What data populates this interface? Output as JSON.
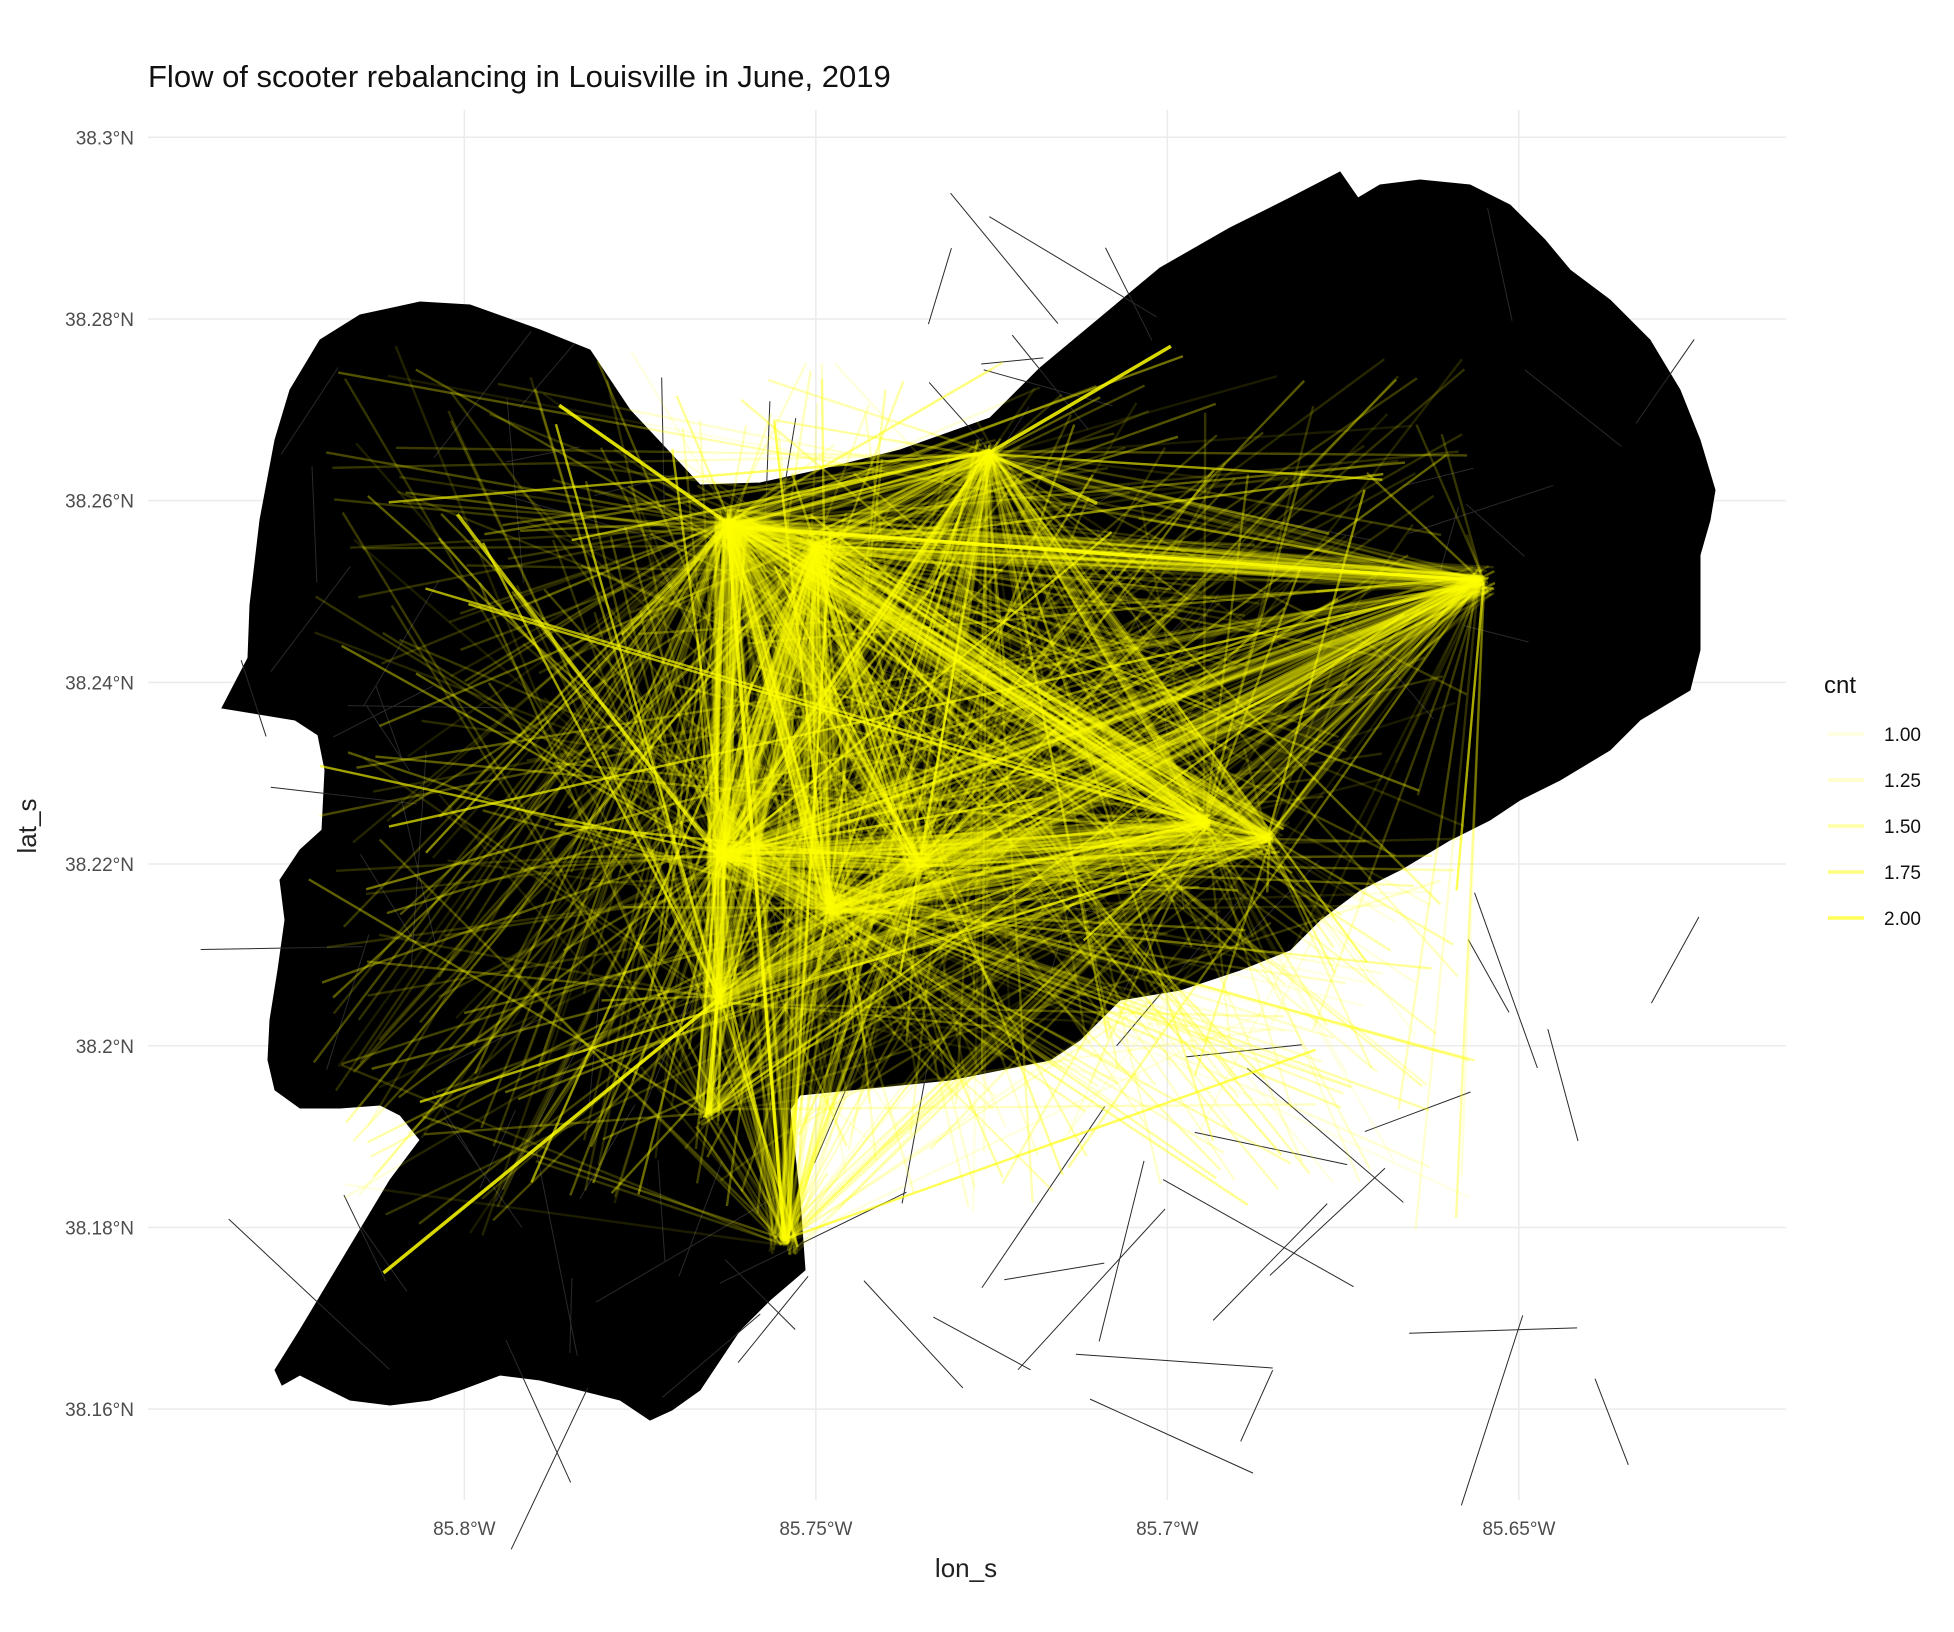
{
  "chart_data": {
    "type": "map",
    "title": "Flow of scooter rebalancing in Louisville in June, 2019",
    "xlabel": "lon_s",
    "ylabel": "lat_s",
    "xlim": [
      -85.845,
      -85.612
    ],
    "ylim": [
      38.15,
      38.303
    ],
    "x_ticks": [
      {
        "value": -85.8,
        "label": "85.8°W"
      },
      {
        "value": -85.75,
        "label": "85.75°W"
      },
      {
        "value": -85.7,
        "label": "85.7°W"
      },
      {
        "value": -85.65,
        "label": "85.65°W"
      }
    ],
    "y_ticks": [
      {
        "value": 38.3,
        "label": "38.3°N"
      },
      {
        "value": 38.28,
        "label": "38.28°N"
      },
      {
        "value": 38.26,
        "label": "38.26°N"
      },
      {
        "value": 38.24,
        "label": "38.24°N"
      },
      {
        "value": 38.22,
        "label": "38.22°N"
      },
      {
        "value": 38.2,
        "label": "38.2°N"
      },
      {
        "value": 38.18,
        "label": "38.18°N"
      },
      {
        "value": 38.16,
        "label": "38.16°N"
      }
    ],
    "grid": true,
    "base_map_color": "#000000",
    "flow_color": "#FFFF00",
    "legend": {
      "title": "cnt",
      "position": "right",
      "entries": [
        {
          "label": "1.00",
          "value": 1.0,
          "opacity": 0.12
        },
        {
          "label": "1.25",
          "value": 1.25,
          "opacity": 0.22
        },
        {
          "label": "1.50",
          "value": 1.5,
          "opacity": 0.35
        },
        {
          "label": "1.75",
          "value": 1.75,
          "opacity": 0.5
        },
        {
          "label": "2.00",
          "value": 2.0,
          "opacity": 0.65
        }
      ]
    },
    "hubs": [
      {
        "lon": -85.7625,
        "lat": 38.2575
      },
      {
        "lon": -85.7255,
        "lat": 38.2652
      },
      {
        "lon": -85.6555,
        "lat": 38.2512
      },
      {
        "lon": -85.6945,
        "lat": 38.2245
      },
      {
        "lon": -85.6855,
        "lat": 38.2228
      },
      {
        "lon": -85.7635,
        "lat": 38.221
      },
      {
        "lon": -85.764,
        "lat": 38.205
      },
      {
        "lon": -85.7655,
        "lat": 38.1925
      },
      {
        "lon": -85.7545,
        "lat": 38.1785
      },
      {
        "lon": -85.75,
        "lat": 38.255
      },
      {
        "lon": -85.748,
        "lat": 38.215
      },
      {
        "lon": -85.735,
        "lat": 38.22
      }
    ],
    "highlighted_flows": [
      {
        "from": [
          -85.7865,
          38.2705
        ],
        "to": [
          -85.7625,
          38.2575
        ],
        "cnt": 2
      },
      {
        "from": [
          -85.8115,
          38.175
        ],
        "to": [
          -85.764,
          38.205
        ],
        "cnt": 2
      },
      {
        "from": [
          -85.7255,
          38.2652
        ],
        "to": [
          -85.6995,
          38.277
        ],
        "cnt": 2
      },
      {
        "from": [
          -85.76,
          38.257
        ],
        "to": [
          -85.6555,
          38.2512
        ],
        "cnt": 2
      },
      {
        "from": [
          -85.764,
          38.205
        ],
        "to": [
          -85.7655,
          38.1925
        ],
        "cnt": 2
      },
      {
        "from": [
          -85.7255,
          38.2652
        ],
        "to": [
          -85.71,
          38.2597
        ],
        "cnt": 1.75
      },
      {
        "from": [
          -85.801,
          38.2585
        ],
        "to": [
          -85.764,
          38.221
        ],
        "cnt": 1.75
      },
      {
        "from": [
          -85.7545,
          38.1785
        ],
        "to": [
          -85.7625,
          38.2575
        ],
        "cnt": 1.75
      }
    ],
    "background_flow_count": 2200
  }
}
